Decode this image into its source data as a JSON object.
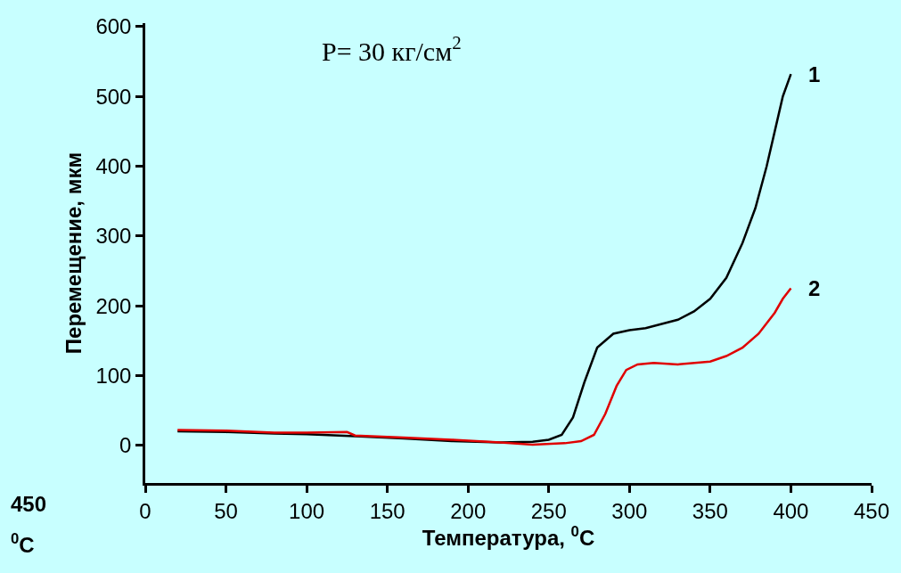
{
  "chart_data": {
    "type": "line",
    "xlabel": "Температура, $^{0}$C",
    "ylabel": "Перемещение, мкм",
    "xlim": [
      0,
      450
    ],
    "xticks": [
      0,
      50,
      100,
      150,
      200,
      250,
      300,
      350,
      400,
      450
    ],
    "ylim": [
      -54,
      605
    ],
    "yticks": [
      0,
      100,
      200,
      300,
      400,
      500,
      600
    ],
    "grid": false,
    "legend": false,
    "marker": "none",
    "line_style": "solid",
    "annotations": [
      "P= 30 кг/см$^{2}$",
      "450",
      "$^{0}$C"
    ],
    "series": [
      {
        "name": "1",
        "color": "#000000",
        "x": [
          20,
          50,
          80,
          100,
          130,
          160,
          190,
          220,
          240,
          250,
          258,
          265,
          272,
          280,
          290,
          300,
          310,
          320,
          330,
          340,
          350,
          360,
          370,
          378,
          385,
          390,
          395,
          400
        ],
        "values": [
          20,
          19,
          17,
          16,
          13,
          10,
          6,
          4,
          5,
          8,
          15,
          40,
          90,
          140,
          160,
          165,
          168,
          174,
          180,
          192,
          210,
          240,
          290,
          340,
          400,
          450,
          500,
          532
        ]
      },
      {
        "name": "2",
        "color": "#e00000",
        "x": [
          20,
          50,
          80,
          100,
          125,
          130,
          160,
          190,
          220,
          240,
          260,
          270,
          278,
          285,
          292,
          298,
          305,
          315,
          330,
          350,
          360,
          370,
          380,
          390,
          395,
          400
        ],
        "values": [
          22,
          21,
          18,
          18,
          19,
          14,
          11,
          8,
          4,
          1,
          3,
          6,
          15,
          45,
          85,
          108,
          116,
          118,
          116,
          120,
          128,
          140,
          160,
          190,
          210,
          225
        ]
      }
    ]
  }
}
